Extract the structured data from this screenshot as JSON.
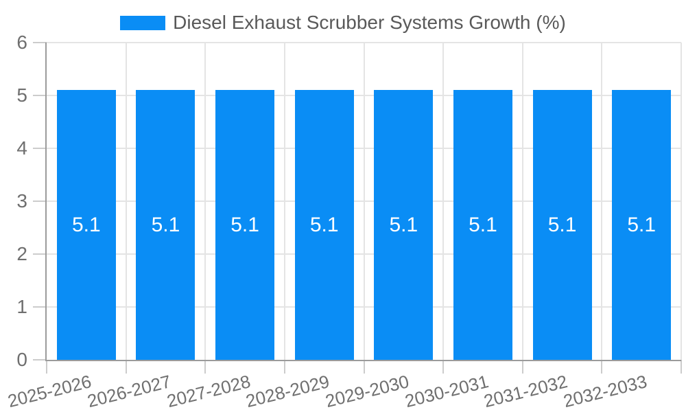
{
  "chart_data": {
    "type": "bar",
    "title": "Diesel Exhaust Scrubber Systems Growth (%)",
    "legend": {
      "label": "Diesel Exhaust Scrubber Systems Growth (%)",
      "position": "top-center"
    },
    "categories": [
      "2025-2026",
      "2026-2027",
      "2027-2028",
      "2028-2029",
      "2029-2030",
      "2030-2031",
      "2031-2032",
      "2032-2033"
    ],
    "series": [
      {
        "name": "Diesel Exhaust Scrubber Systems Growth (%)",
        "values": [
          5.1,
          5.1,
          5.1,
          5.1,
          5.1,
          5.1,
          5.1,
          5.1
        ]
      }
    ],
    "bar_value_labels": [
      "5.1",
      "5.1",
      "5.1",
      "5.1",
      "5.1",
      "5.1",
      "5.1",
      "5.1"
    ],
    "xlabel": "",
    "ylabel": "",
    "ylim": [
      0,
      6
    ],
    "yticks": [
      0,
      1,
      2,
      3,
      4,
      5,
      6
    ],
    "grid": {
      "horizontal": true,
      "vertical": true,
      "vertical_placement": "between-categories"
    },
    "colors": {
      "bar": "#0a8df5",
      "bar_label": "#ffffff",
      "grid": "#e4e4e4",
      "axis": "#9b9b9b",
      "tick_mark": "#cccccc",
      "tick_label": "#6f6f6f",
      "legend_label": "#595959",
      "background": "#ffffff"
    }
  }
}
